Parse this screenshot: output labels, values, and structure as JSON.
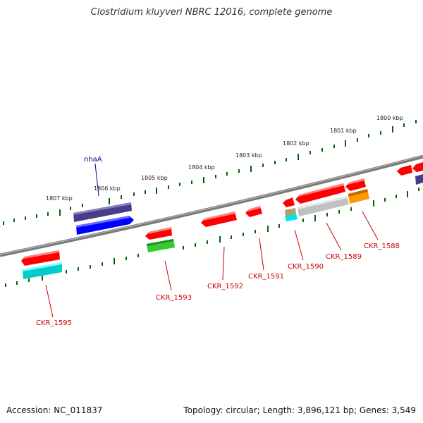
{
  "title": "Clostridium kluyveri NBRC 12016, complete genome",
  "footer": {
    "accession": "Accession: NC_011837",
    "summary": "Topology: circular; Length: 3,896,121 bp; Genes: 3,549"
  },
  "kbp_labels": [
    "1807 kbp",
    "1806 kbp",
    "1805 kbp",
    "1804 kbp",
    "1803 kbp",
    "1802 kbp",
    "1801 kbp",
    "1800 kbp"
  ],
  "genes": [
    {
      "label": "CKR_1595",
      "color": "#ff0000"
    },
    {
      "label": "CKR_1593",
      "color": "#ff0000"
    },
    {
      "label": "CKR_1592",
      "color": "#ff0000"
    },
    {
      "label": "CKR_1591",
      "color": "#ff0000"
    },
    {
      "label": "CKR_1590",
      "color": "#ff0000"
    },
    {
      "label": "CKR_1589",
      "color": "#ff0000"
    },
    {
      "label": "CKR_1588",
      "color": "#ff0000"
    },
    {
      "label": "nhaA",
      "color": "#0000ff"
    }
  ],
  "feature_colors": {
    "gene": "#ff0000",
    "cds_teal": "#00cccc",
    "cds_green": "#33cc33",
    "cds_grey": "#c0c0c0",
    "cds_orange": "#ff9900",
    "cds_olive": "#b0a070",
    "cds_blue": "#0000ff",
    "cds_slate": "#483d8b",
    "ticks": "#006400",
    "backbone": "#777777"
  }
}
